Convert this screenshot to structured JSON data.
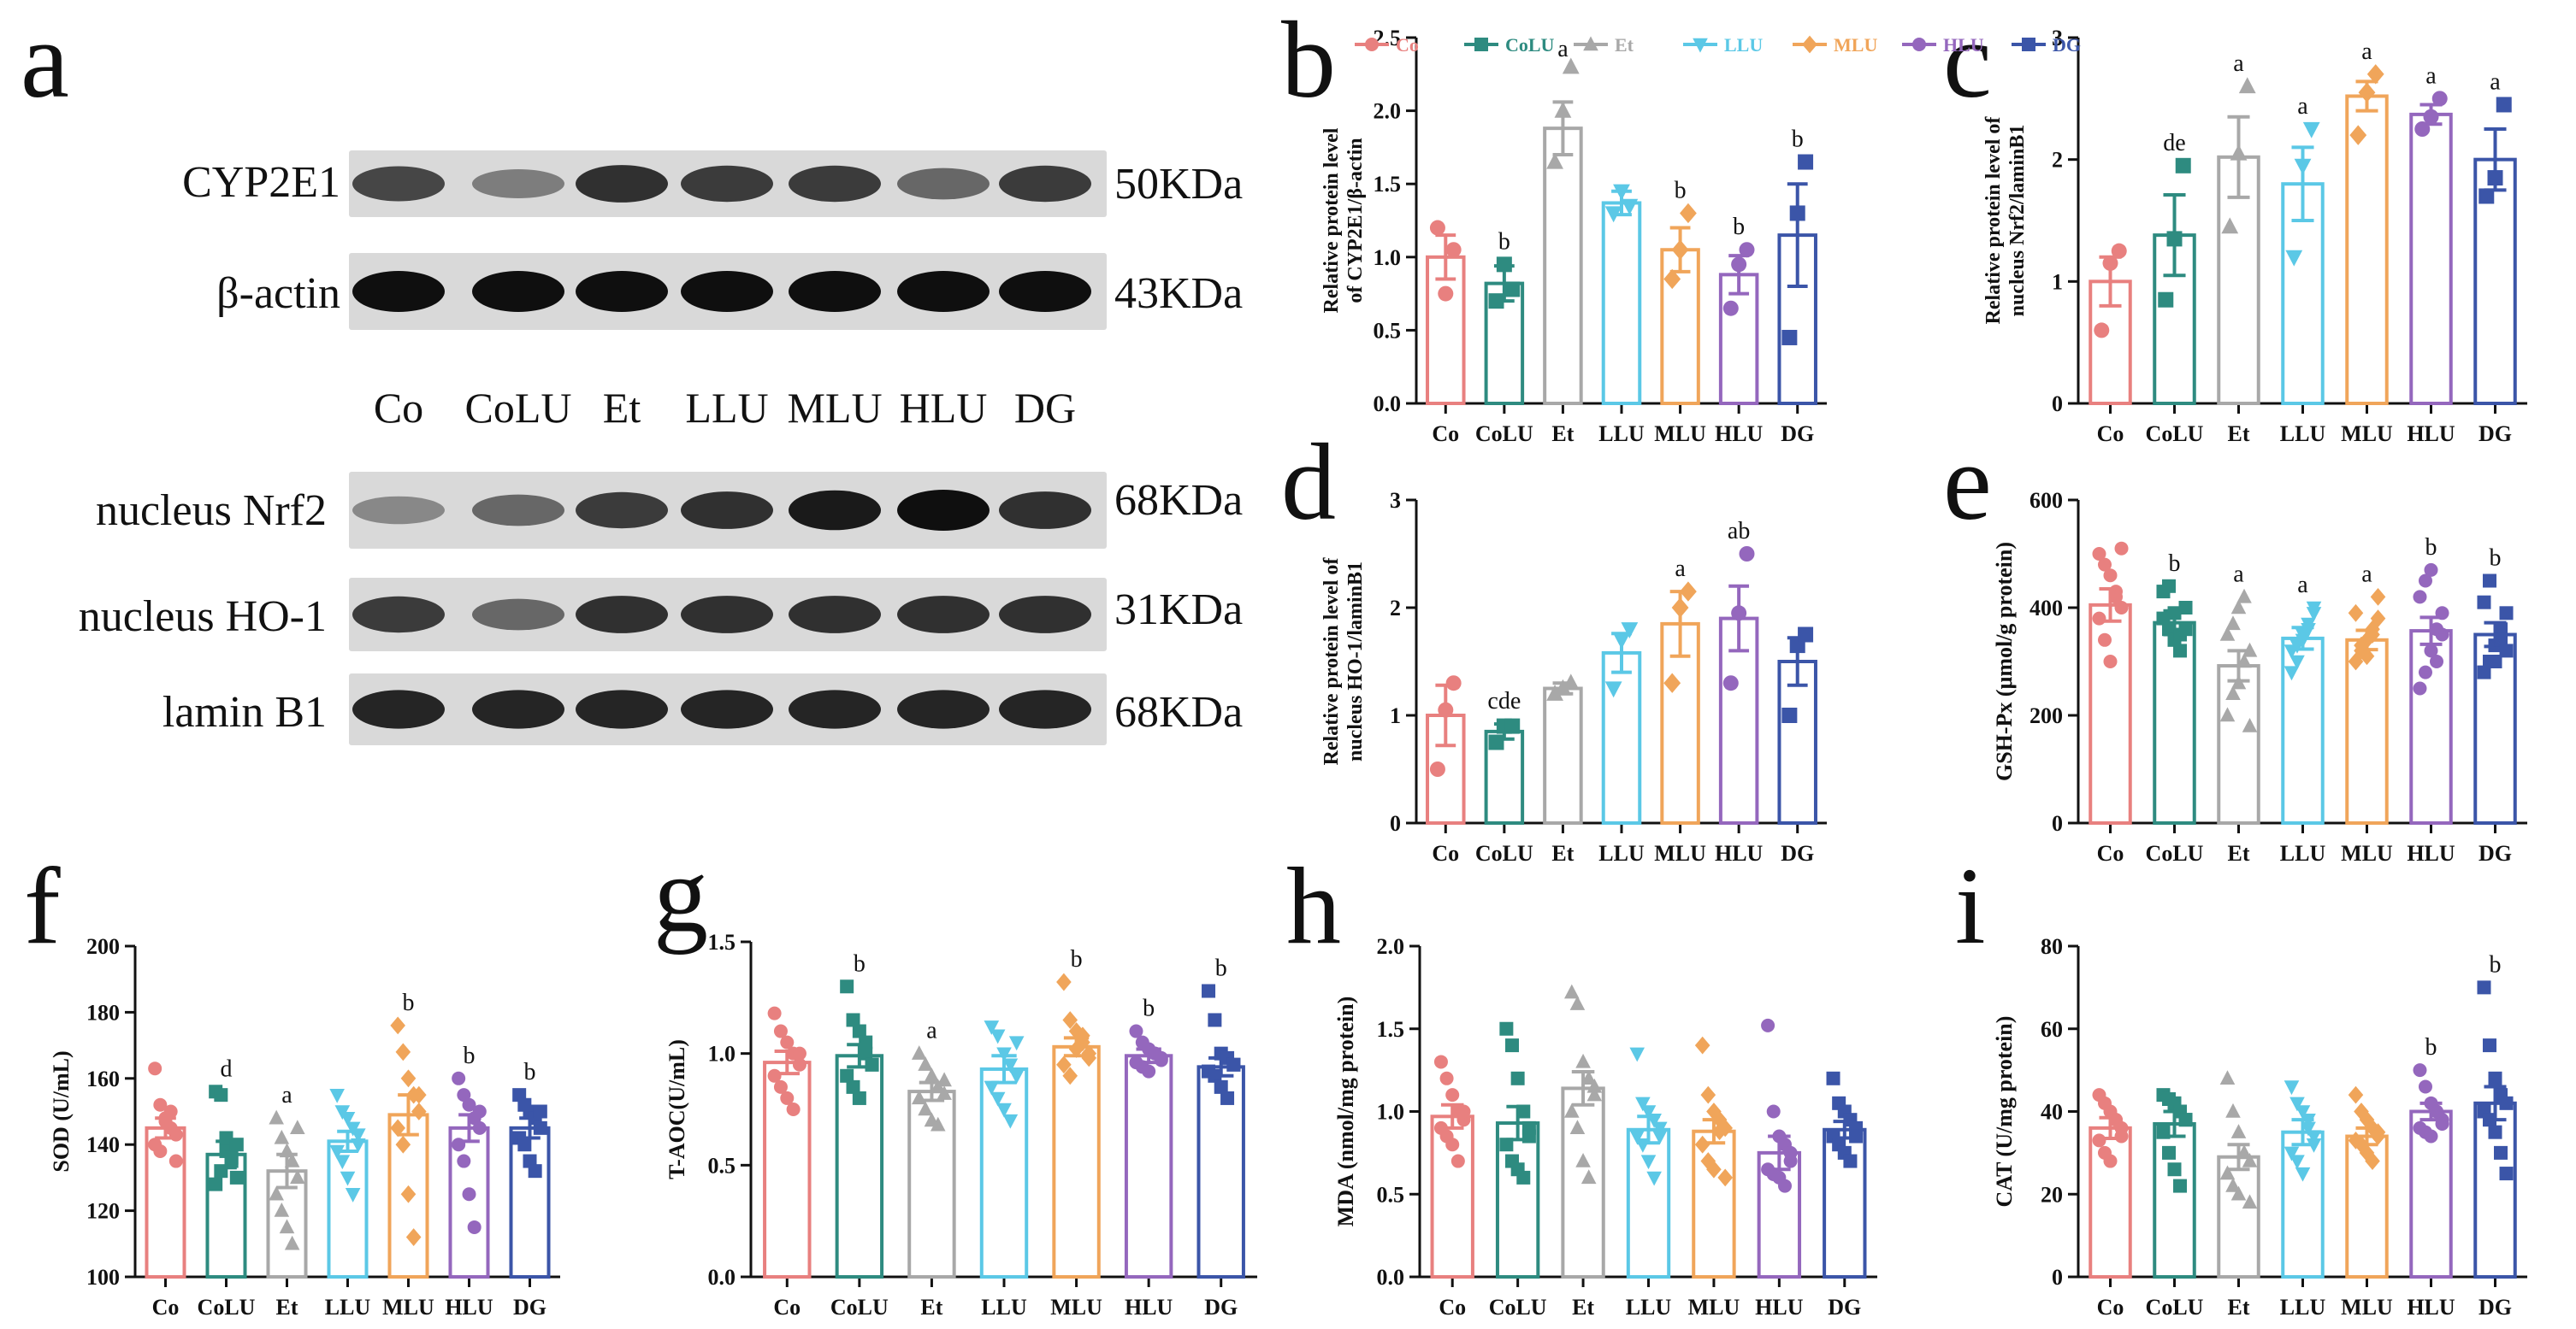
{
  "panel_letters": [
    "a",
    "b",
    "c",
    "d",
    "e",
    "f",
    "g",
    "h",
    "i"
  ],
  "legend": {
    "entries": [
      {
        "label": "Co",
        "color": "#e8807f"
      },
      {
        "label": "CoLU",
        "color": "#2e8b80"
      },
      {
        "label": "Et",
        "color": "#a8a8a8"
      },
      {
        "label": "LLU",
        "color": "#5bc8e6"
      },
      {
        "label": "MLU",
        "color": "#f0a55a"
      },
      {
        "label": "HLU",
        "color": "#9467bd"
      },
      {
        "label": "DG",
        "color": "#3b55a8"
      }
    ]
  },
  "western_blot": {
    "proteins": [
      {
        "name": "CYP2E1",
        "size": "50KDa",
        "band_intensity": [
          0.75,
          0.5,
          0.85,
          0.8,
          0.8,
          0.6,
          0.8
        ]
      },
      {
        "name": "β-actin",
        "size": "43KDa",
        "band_intensity": [
          1,
          1,
          1,
          1,
          1,
          1,
          1
        ]
      },
      {
        "name": "nucleus Nrf2",
        "size": "68KDa",
        "band_intensity": [
          0.45,
          0.6,
          0.8,
          0.85,
          0.95,
          1,
          0.85
        ]
      },
      {
        "name": "nucleus HO-1",
        "size": "31KDa",
        "band_intensity": [
          0.8,
          0.6,
          0.85,
          0.85,
          0.85,
          0.85,
          0.85
        ]
      },
      {
        "name": "lamin B1",
        "size": "68KDa",
        "band_intensity": [
          0.9,
          0.9,
          0.9,
          0.9,
          0.9,
          0.9,
          0.9
        ]
      }
    ],
    "lanes": [
      "Co",
      "CoLU",
      "Et",
      "LLU",
      "MLU",
      "HLU",
      "DG"
    ]
  },
  "chart_data": [
    {
      "panel": "b",
      "type": "bar",
      "categories": [
        "Co",
        "CoLU",
        "Et",
        "LLU",
        "MLU",
        "HLU",
        "DG"
      ],
      "ylabel": "Relative protein level of CYP2E1/β-actin",
      "ylim": [
        0,
        2.5
      ],
      "ticks": [
        0.0,
        0.5,
        1.0,
        1.5,
        2.0,
        2.5
      ],
      "values": [
        1.0,
        0.82,
        1.88,
        1.37,
        1.05,
        0.88,
        1.15
      ],
      "errors": [
        0.15,
        0.12,
        0.18,
        0.08,
        0.15,
        0.13,
        0.35
      ],
      "letters": [
        "",
        "b",
        "a",
        "",
        "b",
        "b",
        "b"
      ],
      "points": [
        [
          1.2,
          0.75,
          1.05
        ],
        [
          0.7,
          0.95,
          0.78
        ],
        [
          1.65,
          2.0,
          2.3
        ],
        [
          1.3,
          1.45,
          1.35
        ],
        [
          0.85,
          1.05,
          1.3
        ],
        [
          0.65,
          0.95,
          1.05
        ],
        [
          0.45,
          1.3,
          1.65
        ]
      ]
    },
    {
      "panel": "c",
      "type": "bar",
      "categories": [
        "Co",
        "CoLU",
        "Et",
        "LLU",
        "MLU",
        "HLU",
        "DG"
      ],
      "ylabel": "Relative protein level of nucleus Nrf2/laminB1",
      "ylim": [
        0,
        3
      ],
      "ticks": [
        0,
        1,
        2,
        3
      ],
      "values": [
        1.0,
        1.38,
        2.02,
        1.8,
        2.52,
        2.37,
        2.0
      ],
      "errors": [
        0.2,
        0.33,
        0.33,
        0.3,
        0.12,
        0.08,
        0.25
      ],
      "letters": [
        "",
        "de",
        "a",
        "a",
        "a",
        "a",
        "a"
      ],
      "points": [
        [
          0.6,
          1.15,
          1.25
        ],
        [
          0.85,
          1.35,
          1.95
        ],
        [
          1.45,
          2.05,
          2.6
        ],
        [
          1.2,
          1.95,
          2.25
        ],
        [
          2.2,
          2.55,
          2.7
        ],
        [
          2.25,
          2.35,
          2.5
        ],
        [
          1.7,
          1.85,
          2.45
        ]
      ]
    },
    {
      "panel": "d",
      "type": "bar",
      "categories": [
        "Co",
        "CoLU",
        "Et",
        "LLU",
        "MLU",
        "HLU",
        "DG"
      ],
      "ylabel": "Relative protein level of nucleus HO-1/laminB1",
      "ylim": [
        0,
        3
      ],
      "ticks": [
        0,
        1,
        2,
        3
      ],
      "values": [
        1.0,
        0.85,
        1.25,
        1.58,
        1.85,
        1.9,
        1.5
      ],
      "errors": [
        0.28,
        0.07,
        0.05,
        0.18,
        0.3,
        0.3,
        0.22
      ],
      "letters": [
        "",
        "cde",
        "",
        "",
        "a",
        "ab",
        ""
      ],
      "points": [
        [
          0.5,
          1.05,
          1.3
        ],
        [
          0.75,
          0.9,
          0.9
        ],
        [
          1.2,
          1.25,
          1.3
        ],
        [
          1.25,
          1.7,
          1.8
        ],
        [
          1.3,
          2.0,
          2.15
        ],
        [
          1.3,
          1.95,
          2.5
        ],
        [
          1.0,
          1.65,
          1.75
        ]
      ]
    },
    {
      "panel": "e",
      "type": "bar",
      "categories": [
        "Co",
        "CoLU",
        "Et",
        "LLU",
        "MLU",
        "HLU",
        "DG"
      ],
      "ylabel": "GSH-Px (μmol/g protein)",
      "ylim": [
        0,
        600
      ],
      "ticks": [
        0,
        200,
        400,
        600
      ],
      "values": [
        405,
        372,
        292,
        343,
        340,
        357,
        350
      ],
      "errors": [
        30,
        22,
        28,
        20,
        18,
        25,
        22
      ],
      "letters": [
        "",
        "b",
        "a",
        "a",
        "a",
        "b",
        "b"
      ],
      "points": [
        [
          500,
          480,
          460,
          430,
          400,
          380,
          340,
          300,
          420,
          510
        ],
        [
          380,
          360,
          340,
          350,
          400,
          430,
          440,
          390,
          320,
          360
        ],
        [
          200,
          240,
          260,
          300,
          320,
          350,
          370,
          400,
          420,
          180
        ],
        [
          320,
          330,
          350,
          370,
          390,
          280,
          300,
          340,
          360,
          400
        ],
        [
          300,
          320,
          340,
          360,
          380,
          390,
          330,
          310,
          350,
          420
        ],
        [
          250,
          280,
          320,
          360,
          390,
          420,
          450,
          470,
          300,
          350
        ],
        [
          280,
          300,
          330,
          360,
          390,
          410,
          450,
          300,
          340,
          320
        ]
      ]
    },
    {
      "panel": "f",
      "type": "bar",
      "categories": [
        "Co",
        "CoLU",
        "Et",
        "LLU",
        "MLU",
        "HLU",
        "DG"
      ],
      "ylabel": "SOD (U/mL)",
      "ylim": [
        100,
        200
      ],
      "ticks": [
        100,
        120,
        140,
        160,
        180,
        200
      ],
      "values": [
        145,
        137,
        132,
        141,
        149,
        145,
        145
      ],
      "errors": [
        3,
        4,
        5,
        3,
        6,
        4,
        3
      ],
      "letters": [
        "",
        "d",
        "a",
        "",
        "b",
        "b",
        "b"
      ],
      "points": [
        [
          163,
          152,
          148,
          145,
          143,
          140,
          138,
          147,
          150,
          135
        ],
        [
          156,
          155,
          138,
          135,
          130,
          128,
          132,
          142,
          136,
          140
        ],
        [
          148,
          142,
          138,
          135,
          130,
          125,
          120,
          115,
          110,
          145
        ],
        [
          155,
          150,
          148,
          145,
          140,
          138,
          135,
          130,
          125,
          143
        ],
        [
          176,
          168,
          160,
          155,
          150,
          145,
          140,
          125,
          112,
          155
        ],
        [
          160,
          155,
          152,
          148,
          145,
          140,
          135,
          125,
          115,
          150
        ],
        [
          155,
          152,
          150,
          148,
          145,
          142,
          140,
          135,
          132,
          150
        ]
      ]
    },
    {
      "panel": "g",
      "type": "bar",
      "categories": [
        "Co",
        "CoLU",
        "Et",
        "LLU",
        "MLU",
        "HLU",
        "DG"
      ],
      "ylabel": "T-AOC(U/mL)",
      "ylim": [
        0.0,
        1.5
      ],
      "ticks": [
        0.0,
        0.5,
        1.0,
        1.5
      ],
      "values": [
        0.96,
        0.99,
        0.83,
        0.93,
        1.03,
        0.99,
        0.94
      ],
      "errors": [
        0.05,
        0.05,
        0.04,
        0.06,
        0.04,
        0.03,
        0.04
      ],
      "letters": [
        "",
        "b",
        "a",
        "",
        "b",
        "b",
        "b"
      ],
      "points": [
        [
          1.18,
          1.1,
          1.05,
          1.0,
          0.95,
          0.9,
          0.85,
          0.8,
          0.75,
          1.0
        ],
        [
          1.3,
          1.15,
          1.1,
          1.0,
          0.95,
          0.9,
          0.85,
          0.8,
          1.05,
          0.95
        ],
        [
          1.0,
          0.95,
          0.9,
          0.85,
          0.82,
          0.8,
          0.75,
          0.7,
          0.68,
          0.88
        ],
        [
          1.12,
          1.08,
          1.0,
          0.95,
          0.9,
          0.85,
          0.8,
          0.75,
          0.7,
          1.05
        ],
        [
          1.32,
          1.15,
          1.1,
          1.05,
          1.0,
          0.95,
          0.9,
          1.02,
          1.08,
          0.98
        ],
        [
          1.1,
          1.05,
          1.02,
          1.0,
          0.98,
          0.96,
          0.94,
          0.92,
          1.0,
          0.97
        ],
        [
          1.28,
          1.15,
          1.0,
          0.98,
          0.95,
          0.92,
          0.9,
          0.85,
          0.8,
          0.95
        ]
      ]
    },
    {
      "panel": "h",
      "type": "bar",
      "categories": [
        "Co",
        "CoLU",
        "Et",
        "LLU",
        "MLU",
        "HLU",
        "DG"
      ],
      "ylabel": "MDA (nmol/mg protein)",
      "ylim": [
        0.0,
        2.0
      ],
      "ticks": [
        0.0,
        0.5,
        1.0,
        1.5,
        2.0
      ],
      "values": [
        0.97,
        0.93,
        1.14,
        0.89,
        0.88,
        0.75,
        0.89
      ],
      "errors": [
        0.07,
        0.1,
        0.1,
        0.08,
        0.07,
        0.1,
        0.05
      ],
      "letters": [
        "",
        "",
        "",
        "",
        "",
        "",
        ""
      ],
      "points": [
        [
          1.3,
          1.2,
          1.1,
          1.0,
          0.95,
          0.9,
          0.85,
          0.8,
          0.7,
          1.0
        ],
        [
          1.5,
          1.4,
          1.2,
          1.0,
          0.9,
          0.8,
          0.7,
          0.65,
          0.6,
          0.85
        ],
        [
          1.72,
          1.65,
          1.3,
          1.2,
          1.1,
          1.0,
          0.9,
          0.7,
          0.6,
          1.15
        ],
        [
          1.35,
          1.05,
          1.0,
          0.95,
          0.9,
          0.85,
          0.8,
          0.7,
          0.6,
          0.85
        ],
        [
          1.4,
          1.1,
          1.0,
          0.95,
          0.9,
          0.8,
          0.7,
          0.65,
          0.88,
          0.6
        ],
        [
          1.52,
          1.0,
          0.85,
          0.8,
          0.7,
          0.65,
          0.62,
          0.6,
          0.55,
          0.75
        ],
        [
          1.2,
          1.05,
          1.0,
          0.95,
          0.9,
          0.85,
          0.8,
          0.75,
          0.7,
          0.85
        ]
      ]
    },
    {
      "panel": "i",
      "type": "bar",
      "categories": [
        "Co",
        "CoLU",
        "Et",
        "LLU",
        "MLU",
        "HLU",
        "DG"
      ],
      "ylabel": "CAT (U/mg protein)",
      "ylim": [
        0,
        80
      ],
      "ticks": [
        0,
        20,
        40,
        60,
        80
      ],
      "values": [
        36,
        37,
        29,
        35,
        34,
        40,
        42
      ],
      "errors": [
        2.5,
        3,
        3,
        3,
        2,
        2,
        4
      ],
      "letters": [
        "",
        "",
        "",
        "",
        "",
        "b",
        "b"
      ],
      "points": [
        [
          44,
          42,
          40,
          38,
          36,
          33,
          30,
          28,
          38,
          34
        ],
        [
          44,
          43,
          42,
          40,
          38,
          35,
          30,
          26,
          22,
          38
        ],
        [
          48,
          40,
          35,
          30,
          28,
          25,
          22,
          20,
          30,
          18
        ],
        [
          46,
          42,
          40,
          36,
          34,
          30,
          28,
          25,
          38,
          32
        ],
        [
          44,
          40,
          38,
          36,
          34,
          33,
          32,
          30,
          28,
          35
        ],
        [
          50,
          46,
          42,
          40,
          38,
          36,
          35,
          34,
          40,
          37
        ],
        [
          70,
          56,
          48,
          44,
          42,
          40,
          38,
          35,
          30,
          25
        ]
      ]
    }
  ]
}
